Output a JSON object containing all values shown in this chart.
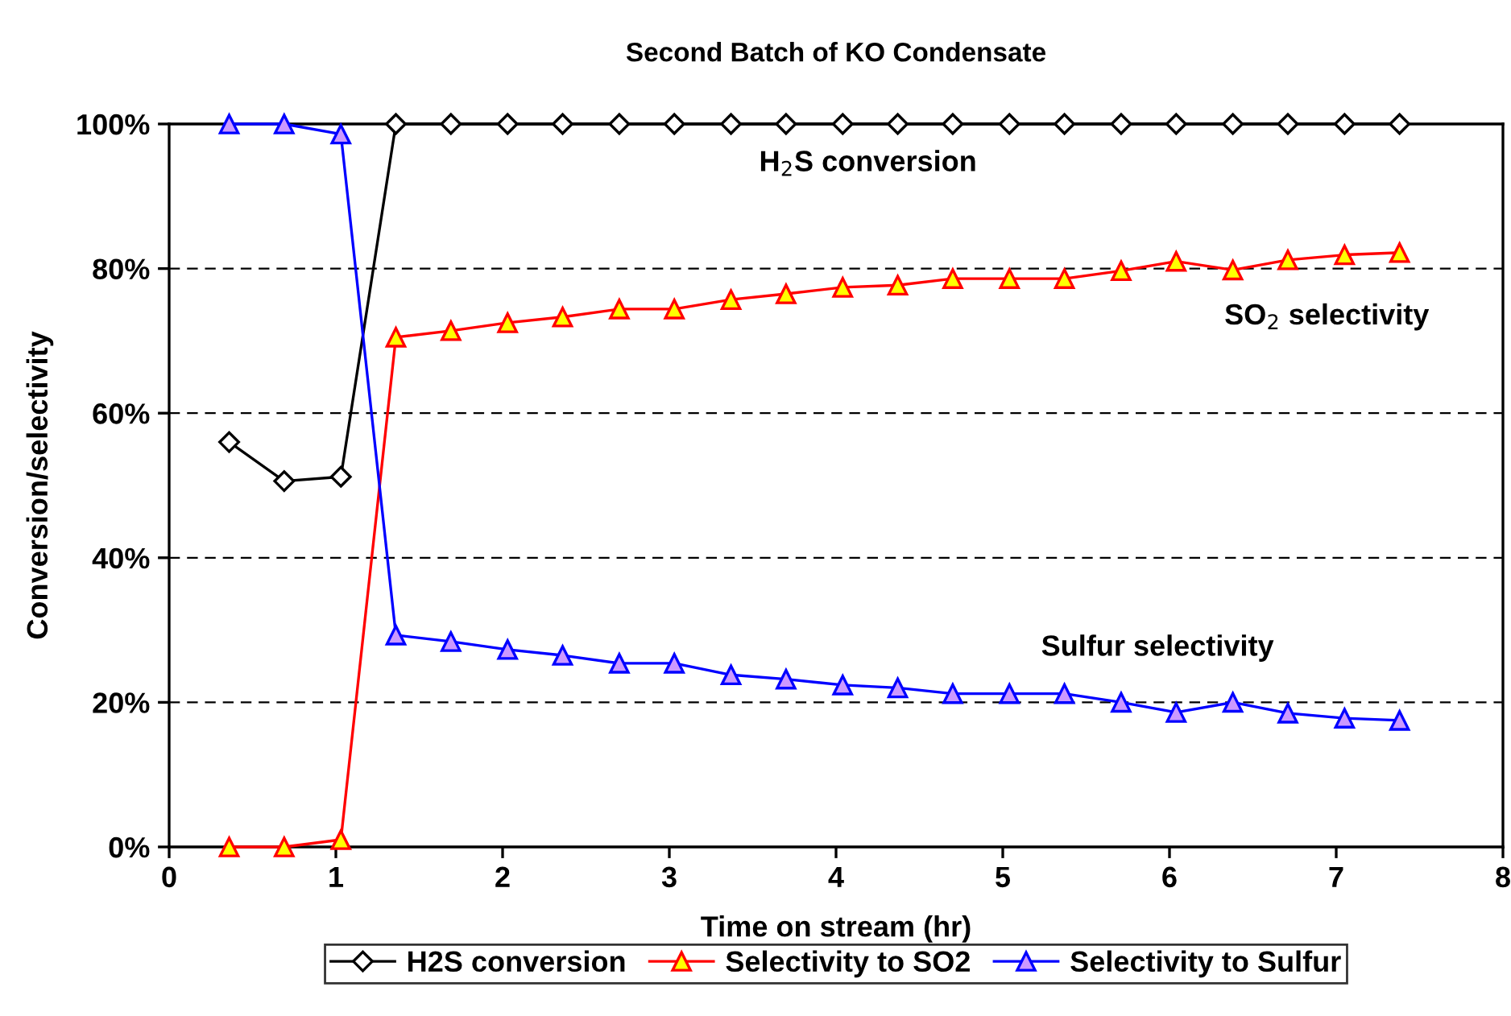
{
  "chart_data": {
    "type": "line",
    "title": "Second Batch of KO Condensate",
    "xlabel": "Time on stream (hr)",
    "ylabel": "Conversion/selectivity",
    "x": [
      0.36,
      0.69,
      1.03,
      1.36,
      1.69,
      2.03,
      2.36,
      2.7,
      3.03,
      3.37,
      3.7,
      4.04,
      4.37,
      4.7,
      5.04,
      5.37,
      5.71,
      6.04,
      6.38,
      6.71,
      7.05,
      7.38
    ],
    "series": [
      {
        "name": "H2S conversion",
        "color": "#000000",
        "marker": "diamond",
        "values": [
          56.0,
          50.6,
          51.2,
          100,
          100,
          100,
          100,
          100,
          100,
          100,
          100,
          100,
          100,
          100,
          100,
          100,
          100,
          100,
          100,
          100,
          100,
          100
        ]
      },
      {
        "name": "Selectivity to SO2",
        "color": "#ff0000",
        "marker": "triangle",
        "values": [
          0,
          0,
          1.0,
          70.5,
          71.4,
          72.5,
          73.3,
          74.4,
          74.4,
          75.7,
          76.5,
          77.4,
          77.7,
          78.6,
          78.6,
          78.6,
          79.7,
          81.0,
          79.8,
          81.2,
          81.9,
          82.2
        ]
      },
      {
        "name": "Selectivity to Sulfur",
        "color": "#0000ff",
        "marker": "triangle",
        "values": [
          100,
          100,
          98.6,
          29.3,
          28.4,
          27.3,
          26.5,
          25.4,
          25.4,
          23.8,
          23.2,
          22.4,
          22.0,
          21.2,
          21.2,
          21.2,
          20.0,
          18.6,
          20.0,
          18.5,
          17.8,
          17.5
        ]
      }
    ],
    "xlim": [
      0,
      8
    ],
    "xticks": [
      0,
      1,
      2,
      3,
      4,
      5,
      6,
      7,
      8
    ],
    "ylim": [
      0,
      100
    ],
    "yticks": [
      {
        "value": 0,
        "label": "0%"
      },
      {
        "value": 20,
        "label": "20%"
      },
      {
        "value": 40,
        "label": "40%"
      },
      {
        "value": 60,
        "label": "60%"
      },
      {
        "value": 80,
        "label": "80%"
      },
      {
        "value": 100,
        "label": "100%"
      }
    ],
    "grid": "y",
    "legend": "bottom",
    "line_style": "solid",
    "annotations": [
      "H$_{2}$S conversion",
      "SO$_{2}$ selectivity",
      "Sulfur selectivity"
    ]
  }
}
